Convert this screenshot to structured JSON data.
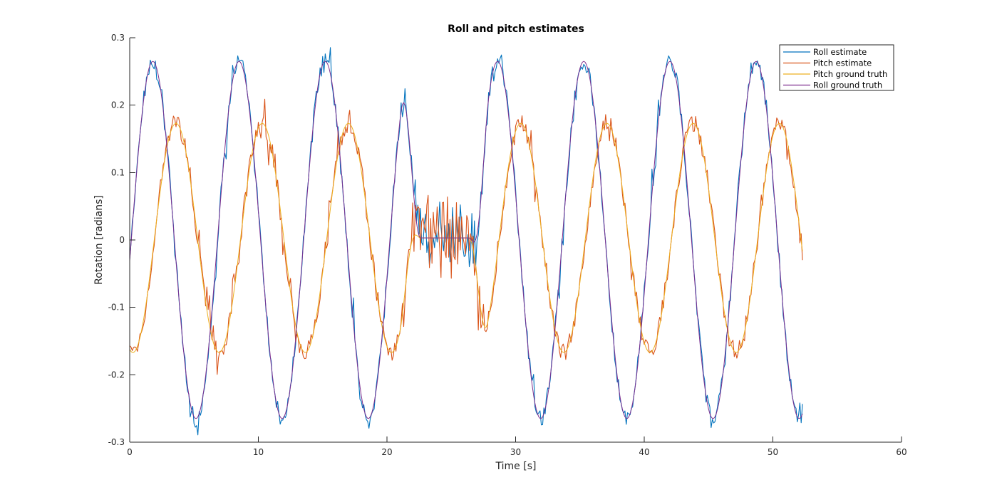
{
  "chart_data": {
    "type": "line",
    "title": "Roll and pitch estimates",
    "xlabel": "Time [s]",
    "ylabel": "Rotation [radians]",
    "xlim": [
      0,
      60
    ],
    "ylim": [
      -0.3,
      0.3
    ],
    "xticks": [
      0,
      10,
      20,
      30,
      40,
      50,
      60
    ],
    "yticks": [
      -0.3,
      -0.2,
      -0.1,
      0,
      0.1,
      0.2,
      0.3
    ],
    "xtick_labels": [
      "0",
      "10",
      "20",
      "30",
      "40",
      "50",
      "60"
    ],
    "ytick_labels": [
      "-0.3",
      "-0.2",
      "-0.1",
      "0",
      "0.1",
      "0.2",
      "0.3"
    ],
    "grid": false,
    "legend_position": "top-right",
    "sampling": {
      "t_start": 0,
      "t_end": 52.3,
      "step": 0.1
    },
    "series": [
      {
        "name": "Roll estimate",
        "color": "#0072BD",
        "kind": "noisy",
        "of": "roll",
        "noise": 0.012,
        "spikes": 0.03
      },
      {
        "name": "Pitch estimate",
        "color": "#D95319",
        "kind": "noisy",
        "of": "pitch",
        "noise": 0.014,
        "spikes": 0.035
      },
      {
        "name": "Pitch ground truth",
        "color": "#EDB120",
        "kind": "truth",
        "of": "pitch"
      },
      {
        "name": "Roll ground truth",
        "color": "#7E2F8E",
        "kind": "truth",
        "of": "roll"
      }
    ],
    "signals": {
      "roll": {
        "amplitude": 0.265,
        "period": 6.7,
        "peak_time": 1.8,
        "offset": 0,
        "still_start": 22.6,
        "still_end": 26.4,
        "still_level": 0.003,
        "ramp_in_start": 21.0,
        "ramp_out_end": 27.9
      },
      "pitch": {
        "amplitude": 0.17,
        "period": 6.7,
        "peak_time": 3.6,
        "offset": 0.003,
        "still_start": 22.6,
        "still_end": 26.4,
        "still_level": 0.003,
        "ramp_in_start": 21.0,
        "ramp_out_end": 27.9
      },
      "still_window_noise": {
        "roll": 0.04,
        "pitch": 0.06
      }
    }
  }
}
